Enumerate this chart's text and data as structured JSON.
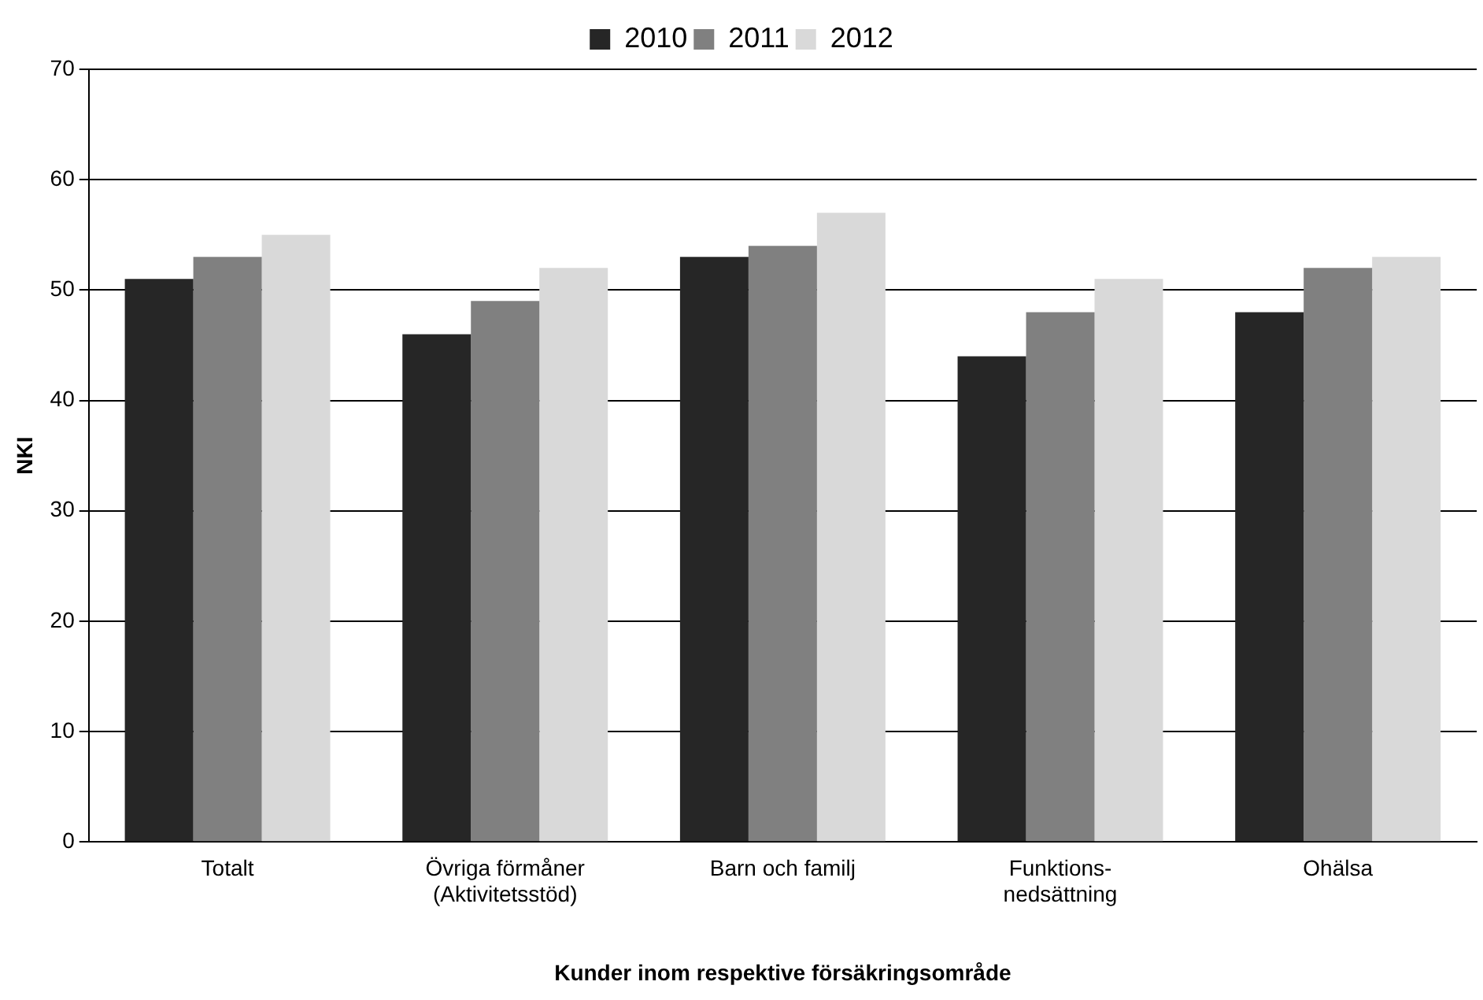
{
  "chart_data": {
    "type": "bar",
    "xlabel": "Kunder inom respektive försäkringsområde",
    "ylabel": "NKI",
    "categories": [
      "Totalt",
      "Övriga förmåner\n(Aktivitetsstöd)",
      "Barn och familj",
      "Funktions-\nnedsättning",
      "Ohälsa"
    ],
    "series": [
      {
        "name": "2010",
        "color": "#262626",
        "values": [
          51,
          46,
          53,
          44,
          48
        ]
      },
      {
        "name": "2011",
        "color": "#808080",
        "values": [
          53,
          49,
          54,
          48,
          52
        ]
      },
      {
        "name": "2012",
        "color": "#d9d9d9",
        "values": [
          55,
          52,
          57,
          51,
          53
        ]
      }
    ],
    "ylim": [
      0,
      70
    ],
    "yticks": [
      0,
      10,
      20,
      30,
      40,
      50,
      60,
      70
    ],
    "grid": "y",
    "legend": "top"
  }
}
